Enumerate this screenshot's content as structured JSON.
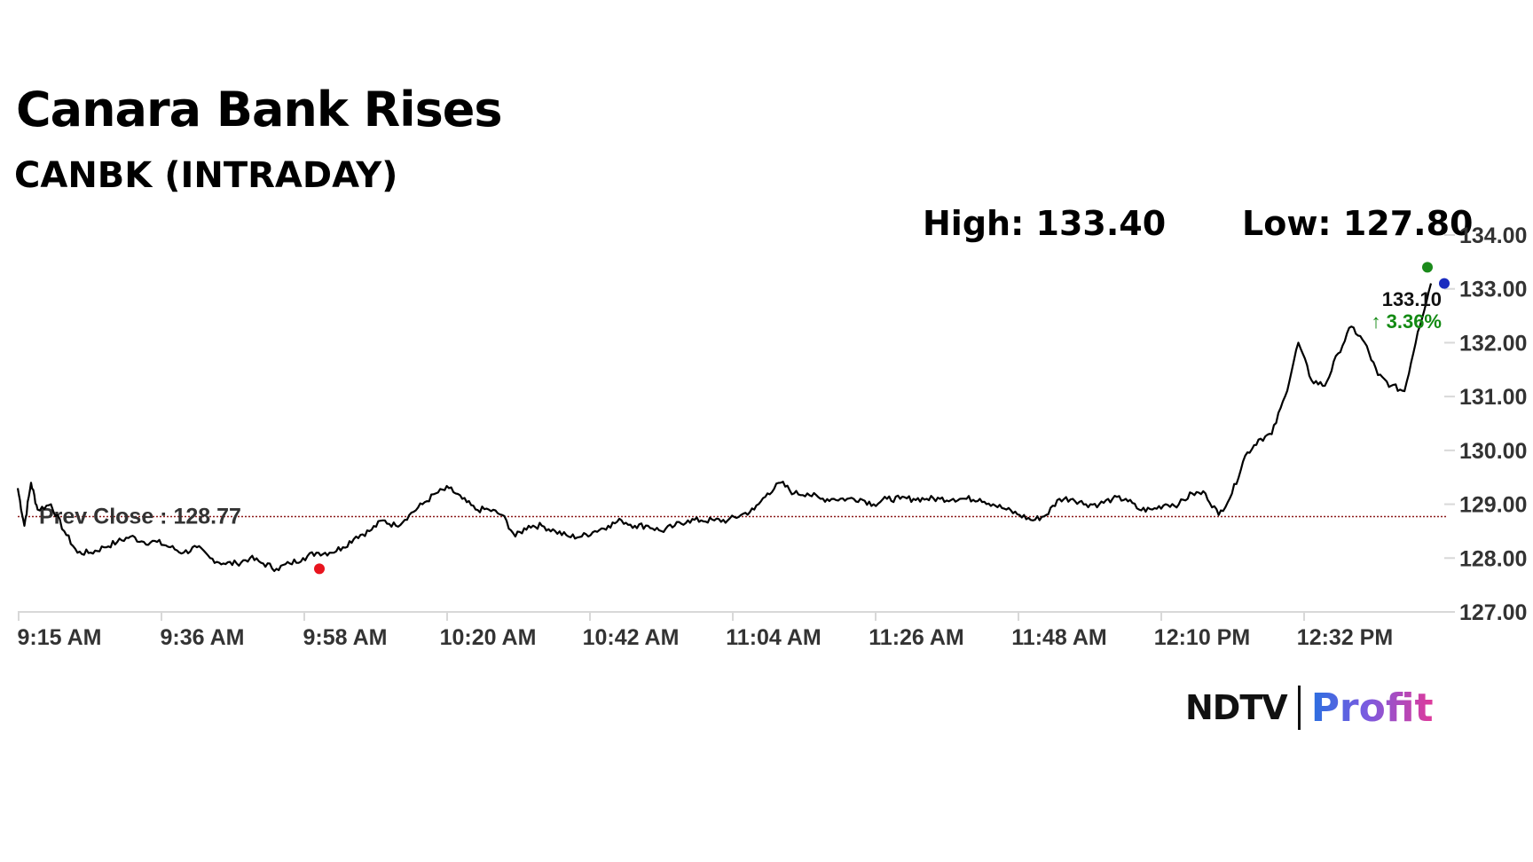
{
  "header": {
    "title": "Canara Bank Rises",
    "subtitle": "CANBK (INTRADAY)",
    "high_label": "High: 133.40",
    "low_label": "Low: 127.80"
  },
  "logo": {
    "brand": "NDTV",
    "product": "Profit"
  },
  "chart_data": {
    "type": "line",
    "title": "Canara Bank Rises",
    "subtitle": "CANBK (INTRADAY)",
    "xlabel": "",
    "ylabel": "",
    "x_tick_labels": [
      "9:15 AM",
      "9:36 AM",
      "9:58 AM",
      "10:20 AM",
      "10:42 AM",
      "11:04 AM",
      "11:26 AM",
      "11:48 AM",
      "12:10 PM",
      "12:32 PM"
    ],
    "y_tick_labels": [
      "127.00",
      "128.00",
      "129.00",
      "130.00",
      "131.00",
      "132.00",
      "133.00",
      "134.00"
    ],
    "ylim": [
      127,
      134
    ],
    "grid": false,
    "prev_close": {
      "label": "Prev Close : 128.77",
      "value": 128.77
    },
    "last_price": {
      "value_label": "133.10",
      "change_label": "↑ 3.36%"
    },
    "high": 133.4,
    "low": 127.8,
    "series": [
      {
        "x": [
          "9:15",
          "9:16",
          "9:17",
          "9:18",
          "9:20",
          "9:22",
          "9:24",
          "9:26",
          "9:28",
          "9:30",
          "9:32",
          "9:34",
          "9:36",
          "9:38",
          "9:40",
          "9:42",
          "9:44",
          "9:46",
          "9:48",
          "9:50",
          "9:52",
          "9:54",
          "9:56",
          "9:58",
          "10:00",
          "10:02",
          "10:04",
          "10:06",
          "10:08",
          "10:10",
          "10:12",
          "10:14",
          "10:16",
          "10:18",
          "10:20",
          "10:22",
          "10:24",
          "10:26",
          "10:28",
          "10:30",
          "10:32",
          "10:34",
          "10:36",
          "10:38",
          "10:40",
          "10:42",
          "10:44",
          "10:46",
          "10:48",
          "10:50",
          "10:52",
          "10:54",
          "10:56",
          "10:58",
          "11:00",
          "11:02",
          "11:04",
          "11:06",
          "11:08",
          "11:10",
          "11:12",
          "11:14",
          "11:16",
          "11:18",
          "11:20",
          "11:22",
          "11:24",
          "11:26",
          "11:28",
          "11:30",
          "11:32",
          "11:34",
          "11:36",
          "11:38",
          "11:40",
          "11:42",
          "11:44",
          "11:46",
          "11:48",
          "11:50",
          "11:52",
          "11:54",
          "11:56",
          "11:58",
          "12:00",
          "12:02",
          "12:04",
          "12:06",
          "12:08",
          "12:10",
          "12:12",
          "12:14",
          "12:16",
          "12:18",
          "12:20",
          "12:22",
          "12:24",
          "12:26",
          "12:28",
          "12:30",
          "12:32",
          "12:34",
          "12:36",
          "12:38",
          "12:40",
          "12:42",
          "12:44",
          "12:46",
          "12:48"
        ],
        "y": [
          129.3,
          128.6,
          129.4,
          128.9,
          129.0,
          128.5,
          128.1,
          128.1,
          128.2,
          128.3,
          128.4,
          128.3,
          128.3,
          128.2,
          128.1,
          128.2,
          128.0,
          127.9,
          127.9,
          128.0,
          127.9,
          127.8,
          127.9,
          128.0,
          128.1,
          128.1,
          128.2,
          128.4,
          128.5,
          128.7,
          128.6,
          128.8,
          129.0,
          129.2,
          129.3,
          129.1,
          128.9,
          128.9,
          128.8,
          128.4,
          128.6,
          128.6,
          128.5,
          128.4,
          128.4,
          128.5,
          128.6,
          128.7,
          128.6,
          128.6,
          128.5,
          128.6,
          128.7,
          128.7,
          128.7,
          128.7,
          128.8,
          128.9,
          129.2,
          129.4,
          129.2,
          129.2,
          129.1,
          129.1,
          129.1,
          129.1,
          129.0,
          129.1,
          129.1,
          129.1,
          129.1,
          129.1,
          129.1,
          129.1,
          129.1,
          129.0,
          128.9,
          128.8,
          128.7,
          128.8,
          129.1,
          129.1,
          129.0,
          129.0,
          129.1,
          129.1,
          128.9,
          128.9,
          129.0,
          129.0,
          129.2,
          129.2,
          128.8,
          129.2,
          129.9,
          130.2,
          130.3,
          131.0,
          132.0,
          131.3,
          131.2,
          131.8,
          132.3,
          132.0,
          131.4,
          131.2,
          131.1,
          132.2,
          133.1
        ]
      }
    ]
  },
  "colors": {
    "line": "#000000",
    "prev_close_line": "#8b1a1a",
    "low_marker": "#e8141e",
    "high_marker": "#1b8a1b",
    "last_marker": "#1a2bbf",
    "change_up": "#138a13",
    "axis": "#d8d8d8",
    "tick_text": "#333333"
  }
}
